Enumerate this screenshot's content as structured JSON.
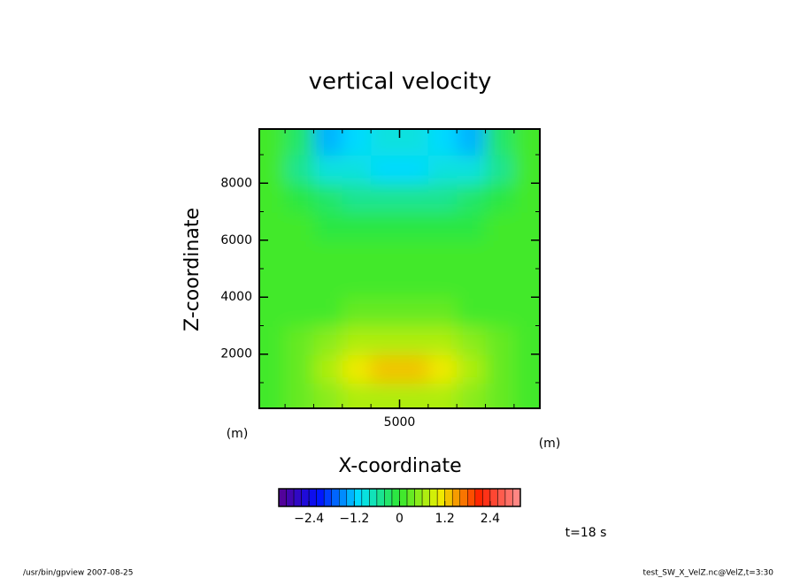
{
  "chart_data": {
    "type": "contour",
    "title": "vertical velocity",
    "x_label": "X-coordinate",
    "y_label": "Z-coordinate",
    "x_unit": "(m)",
    "y_unit": "(m)",
    "time_label": "t=18 s",
    "footer_left": "/usr/bin/gpview   2007-08-25",
    "footer_right": "test_SW_X_VelZ.nc@VelZ,t=3:30",
    "x": [
      500,
      1500,
      2500,
      3500,
      4500,
      5500,
      6500,
      7500,
      8500,
      9500
    ],
    "y": [
      500,
      1500,
      2500,
      3500,
      4500,
      5500,
      6500,
      7500,
      8500,
      9500
    ],
    "values": [
      [
        0.1,
        0.2,
        0.4,
        0.6,
        0.7,
        0.7,
        0.6,
        0.4,
        0.2,
        0.1
      ],
      [
        0.1,
        0.3,
        0.7,
        1.1,
        1.2,
        1.2,
        1.1,
        0.7,
        0.3,
        0.1
      ],
      [
        0.0,
        0.2,
        0.4,
        0.6,
        0.7,
        0.7,
        0.6,
        0.4,
        0.2,
        0.0
      ],
      [
        0.0,
        0.1,
        0.1,
        0.2,
        0.3,
        0.3,
        0.2,
        0.1,
        0.1,
        0.0
      ],
      [
        0.0,
        0.0,
        0.0,
        0.1,
        0.1,
        0.1,
        0.1,
        0.0,
        0.0,
        0.0
      ],
      [
        0.0,
        0.0,
        0.0,
        0.0,
        0.0,
        0.0,
        0.0,
        0.0,
        0.0,
        0.0
      ],
      [
        0.0,
        0.0,
        -0.1,
        -0.1,
        -0.1,
        -0.1,
        -0.1,
        -0.1,
        0.0,
        0.0
      ],
      [
        0.0,
        -0.1,
        -0.3,
        -0.5,
        -0.6,
        -0.6,
        -0.5,
        -0.3,
        -0.1,
        0.0
      ],
      [
        0.0,
        -0.5,
        -1.0,
        -1.0,
        -1.1,
        -1.1,
        -1.0,
        -1.0,
        -0.5,
        0.0
      ],
      [
        0.0,
        -0.4,
        -1.4,
        -1.2,
        -0.9,
        -0.9,
        -1.2,
        -1.4,
        -0.4,
        0.0
      ]
    ],
    "xlim": [
      100,
      9900
    ],
    "ylim": [
      100,
      9900
    ],
    "xticks": [
      5000
    ],
    "yticks": [
      2000,
      4000,
      6000,
      8000
    ],
    "xminorticks": [
      1000,
      2000,
      3000,
      4000,
      6000,
      7000,
      8000,
      9000
    ],
    "yminorticks": [
      1000,
      3000,
      5000,
      7000,
      9000
    ],
    "colormap": [
      "#5a0090",
      "#0010ff",
      "#00e0ff",
      "#30e830",
      "#f0f000",
      "#ff2000",
      "#ff9090"
    ],
    "colorbar": {
      "levels": [
        -3.2,
        -3.0,
        -2.8,
        -2.6,
        -2.4,
        -2.2,
        -2.0,
        -1.8,
        -1.6,
        -1.4,
        -1.2,
        -1.0,
        -0.8,
        -0.6,
        -0.4,
        -0.2,
        0,
        0.2,
        0.4,
        0.6,
        0.8,
        1.0,
        1.2,
        1.4,
        1.6,
        1.8,
        2.0,
        2.2,
        2.4,
        2.6,
        2.8,
        3.0,
        3.2
      ],
      "ticks": [
        {
          "value": -2.4,
          "label": "−2.4"
        },
        {
          "value": -1.2,
          "label": "−1.2"
        },
        0,
        1.2,
        2.4
      ]
    }
  }
}
